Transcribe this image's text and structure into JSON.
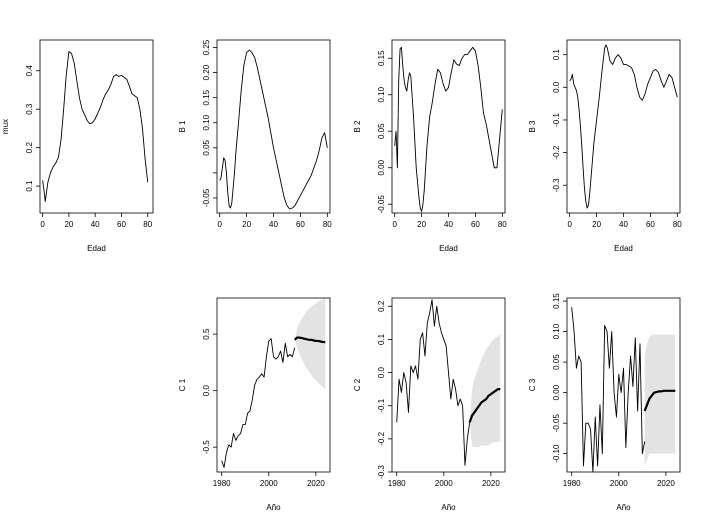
{
  "chart_data": [
    {
      "type": "line",
      "ylabel": "mux",
      "xlabel": "Edad",
      "xlim": [
        -2,
        84
      ],
      "ylim": [
        0.03,
        0.48
      ],
      "xticks": [
        0,
        20,
        40,
        60,
        80
      ],
      "yticks": [
        0.1,
        0.2,
        0.3,
        0.4
      ],
      "x": [
        0,
        1,
        2,
        4,
        6,
        8,
        10,
        12,
        14,
        16,
        18,
        20,
        22,
        24,
        26,
        28,
        30,
        32,
        34,
        36,
        38,
        40,
        42,
        44,
        46,
        48,
        50,
        52,
        54,
        56,
        58,
        60,
        62,
        64,
        66,
        68,
        70,
        72,
        74,
        76,
        78,
        80
      ],
      "series": [
        {
          "values": [
            0.115,
            0.09,
            0.06,
            0.11,
            0.135,
            0.15,
            0.16,
            0.175,
            0.22,
            0.3,
            0.39,
            0.45,
            0.445,
            0.42,
            0.375,
            0.33,
            0.3,
            0.285,
            0.27,
            0.262,
            0.265,
            0.275,
            0.29,
            0.305,
            0.325,
            0.34,
            0.35,
            0.365,
            0.385,
            0.39,
            0.385,
            0.388,
            0.383,
            0.378,
            0.36,
            0.34,
            0.335,
            0.33,
            0.3,
            0.25,
            0.17,
            0.11
          ]
        }
      ]
    },
    {
      "type": "line",
      "ylabel": "B 1",
      "xlabel": "",
      "xlim": [
        -2,
        82
      ],
      "ylim": [
        -0.08,
        0.265
      ],
      "xticks": [
        0,
        20,
        40,
        60,
        80
      ],
      "yticks": [
        -0.05,
        0.0,
        0.05,
        0.1,
        0.15,
        0.2,
        0.25
      ],
      "ytick_labels": [
        "-0.05",
        "",
        "0.05",
        "0.10",
        "0.15",
        "0.20",
        "0.25"
      ],
      "x": [
        0,
        1,
        2,
        3,
        4,
        5,
        6,
        7,
        8,
        9,
        10,
        11,
        12,
        14,
        16,
        18,
        20,
        22,
        24,
        26,
        28,
        30,
        32,
        34,
        36,
        38,
        40,
        42,
        44,
        46,
        48,
        50,
        52,
        54,
        56,
        58,
        60,
        62,
        64,
        66,
        68,
        70,
        72,
        74,
        76,
        78,
        80
      ],
      "series": [
        {
          "values": [
            -0.015,
            -0.01,
            0.01,
            0.03,
            0.025,
            0.0,
            -0.04,
            -0.065,
            -0.07,
            -0.06,
            -0.03,
            0.0,
            0.04,
            0.1,
            0.165,
            0.215,
            0.24,
            0.245,
            0.24,
            0.23,
            0.21,
            0.185,
            0.16,
            0.135,
            0.11,
            0.08,
            0.05,
            0.025,
            0.0,
            -0.025,
            -0.05,
            -0.065,
            -0.072,
            -0.07,
            -0.065,
            -0.055,
            -0.045,
            -0.035,
            -0.025,
            -0.015,
            -0.005,
            0.01,
            0.025,
            0.045,
            0.07,
            0.08,
            0.05
          ]
        }
      ]
    },
    {
      "type": "line",
      "ylabel": "B 2",
      "xlabel": "Edad",
      "xlim": [
        -2,
        82
      ],
      "ylim": [
        -0.062,
        0.175
      ],
      "xticks": [
        0,
        20,
        40,
        60,
        80
      ],
      "yticks": [
        -0.05,
        0.0,
        0.05,
        0.1,
        0.15
      ],
      "ytick_labels": [
        "-0.05",
        "0.00",
        "0.05",
        "0.10",
        "0.15"
      ],
      "x": [
        0,
        1,
        2,
        3,
        4,
        5,
        6,
        7,
        8,
        9,
        10,
        11,
        12,
        14,
        16,
        18,
        19,
        20,
        21,
        22,
        24,
        26,
        28,
        30,
        32,
        34,
        36,
        38,
        40,
        42,
        44,
        46,
        48,
        50,
        52,
        54,
        56,
        58,
        60,
        61,
        62,
        64,
        66,
        68,
        70,
        72,
        74,
        76,
        78,
        80
      ],
      "series": [
        {
          "values": [
            0.03,
            0.05,
            0.0,
            0.12,
            0.163,
            0.165,
            0.14,
            0.12,
            0.11,
            0.105,
            0.12,
            0.13,
            0.125,
            0.07,
            0.0,
            -0.04,
            -0.055,
            -0.06,
            -0.05,
            -0.03,
            0.03,
            0.07,
            0.09,
            0.115,
            0.135,
            0.13,
            0.115,
            0.105,
            0.11,
            0.13,
            0.148,
            0.142,
            0.14,
            0.15,
            0.155,
            0.155,
            0.16,
            0.165,
            0.16,
            0.15,
            0.14,
            0.11,
            0.075,
            0.06,
            0.04,
            0.02,
            0.0,
            0.0,
            0.04,
            0.08
          ]
        }
      ]
    },
    {
      "type": "line",
      "ylabel": "B 3",
      "xlabel": "Edad",
      "xlim": [
        -2,
        82
      ],
      "ylim": [
        -0.385,
        0.145
      ],
      "xticks": [
        0,
        20,
        40,
        60,
        80
      ],
      "yticks": [
        -0.3,
        -0.2,
        -0.1,
        0.0,
        0.1
      ],
      "ytick_labels": [
        "-0.3",
        "-0.2",
        "-0.1",
        "0.0",
        "0.1"
      ],
      "x": [
        0,
        1,
        2,
        3,
        4,
        5,
        6,
        7,
        8,
        9,
        10,
        11,
        12,
        13,
        14,
        15,
        16,
        17,
        18,
        20,
        22,
        24,
        26,
        27,
        28,
        30,
        32,
        34,
        36,
        38,
        40,
        42,
        44,
        46,
        48,
        50,
        52,
        54,
        56,
        58,
        60,
        62,
        64,
        66,
        68,
        70,
        72,
        74,
        76,
        78,
        80
      ],
      "series": [
        {
          "values": [
            0.02,
            0.025,
            0.04,
            0.01,
            0.0,
            -0.01,
            -0.03,
            -0.07,
            -0.12,
            -0.18,
            -0.25,
            -0.31,
            -0.35,
            -0.37,
            -0.36,
            -0.32,
            -0.27,
            -0.22,
            -0.17,
            -0.1,
            -0.03,
            0.05,
            0.12,
            0.13,
            0.12,
            0.08,
            0.07,
            0.09,
            0.1,
            0.09,
            0.07,
            0.07,
            0.065,
            0.06,
            0.04,
            0.0,
            -0.03,
            -0.04,
            -0.02,
            0.01,
            0.03,
            0.05,
            0.055,
            0.045,
            0.02,
            0.0,
            0.02,
            0.04,
            0.03,
            0.0,
            -0.03
          ]
        }
      ]
    },
    {
      "type": "line",
      "ylabel": "C 1",
      "xlabel": "Año",
      "xlim": [
        1978,
        2026
      ],
      "ylim": [
        -0.72,
        0.82
      ],
      "xticks": [
        1980,
        2000,
        2020
      ],
      "yticks": [
        -0.5,
        0.0,
        0.5
      ],
      "ytick_labels": [
        "-0.5",
        "0.0",
        "0.5"
      ],
      "x": [
        1980,
        1981,
        1982,
        1983,
        1984,
        1985,
        1986,
        1987,
        1988,
        1989,
        1990,
        1991,
        1992,
        1993,
        1994,
        1995,
        1996,
        1997,
        1998,
        1999,
        2000,
        2001,
        2002,
        2003,
        2004,
        2005,
        2006,
        2007,
        2008,
        2009,
        2010,
        2011
      ],
      "series": [
        {
          "values": [
            -0.62,
            -0.68,
            -0.55,
            -0.48,
            -0.5,
            -0.38,
            -0.44,
            -0.4,
            -0.38,
            -0.3,
            -0.3,
            -0.2,
            -0.18,
            -0.08,
            0.05,
            0.1,
            0.12,
            0.15,
            0.12,
            0.3,
            0.44,
            0.46,
            0.3,
            0.28,
            0.3,
            0.35,
            0.25,
            0.42,
            0.3,
            0.32,
            0.3,
            0.38
          ]
        }
      ],
      "forecast": {
        "x": [
          2011,
          2012,
          2013,
          2014,
          2015,
          2016,
          2017,
          2018,
          2019,
          2020,
          2021,
          2022,
          2023,
          2024
        ],
        "mean": [
          0.45,
          0.47,
          0.47,
          0.465,
          0.46,
          0.455,
          0.45,
          0.45,
          0.445,
          0.44,
          0.44,
          0.435,
          0.43,
          0.43
        ],
        "lower": [
          0.45,
          0.38,
          0.33,
          0.28,
          0.24,
          0.2,
          0.17,
          0.14,
          0.11,
          0.09,
          0.07,
          0.05,
          0.03,
          0.01
        ],
        "upper": [
          0.45,
          0.55,
          0.6,
          0.64,
          0.67,
          0.7,
          0.72,
          0.74,
          0.76,
          0.77,
          0.79,
          0.8,
          0.81,
          0.82
        ]
      }
    },
    {
      "type": "line",
      "ylabel": "C 2",
      "xlabel": "Año",
      "xlim": [
        1978,
        2026
      ],
      "ylim": [
        -0.3,
        0.225
      ],
      "xticks": [
        1980,
        2000,
        2020
      ],
      "yticks": [
        -0.3,
        -0.2,
        -0.1,
        0.0,
        0.1,
        0.2
      ],
      "ytick_labels": [
        "-0.3",
        "-0.2",
        "-0.1",
        "0.0",
        "0.1",
        "0.2"
      ],
      "x": [
        1980,
        1981,
        1982,
        1983,
        1984,
        1985,
        1986,
        1987,
        1988,
        1989,
        1990,
        1991,
        1992,
        1993,
        1994,
        1995,
        1996,
        1997,
        1998,
        1999,
        2000,
        2001,
        2002,
        2003,
        2004,
        2005,
        2006,
        2007,
        2008,
        2009,
        2010,
        2011
      ],
      "series": [
        {
          "values": [
            -0.15,
            -0.02,
            -0.06,
            0.0,
            -0.03,
            -0.12,
            0.02,
            0.0,
            0.02,
            -0.02,
            0.1,
            0.12,
            0.05,
            0.15,
            0.18,
            0.22,
            0.14,
            0.2,
            0.15,
            0.12,
            0.1,
            0.08,
            0.0,
            -0.08,
            -0.02,
            -0.05,
            -0.1,
            -0.08,
            -0.1,
            -0.28,
            -0.2,
            -0.15
          ]
        }
      ],
      "forecast": {
        "x": [
          2011,
          2012,
          2013,
          2014,
          2015,
          2016,
          2017,
          2018,
          2019,
          2020,
          2021,
          2022,
          2023,
          2024
        ],
        "mean": [
          -0.15,
          -0.13,
          -0.12,
          -0.11,
          -0.1,
          -0.09,
          -0.085,
          -0.08,
          -0.07,
          -0.065,
          -0.06,
          -0.055,
          -0.05,
          -0.05
        ],
        "lower": [
          -0.15,
          -0.22,
          -0.225,
          -0.225,
          -0.225,
          -0.22,
          -0.22,
          -0.22,
          -0.22,
          -0.215,
          -0.21,
          -0.21,
          -0.21,
          -0.205
        ],
        "upper": [
          -0.15,
          -0.05,
          -0.02,
          0.0,
          0.02,
          0.04,
          0.055,
          0.07,
          0.08,
          0.09,
          0.1,
          0.105,
          0.11,
          0.115
        ]
      }
    },
    {
      "type": "line",
      "ylabel": "C 3",
      "xlabel": "Año",
      "xlim": [
        1978,
        2026
      ],
      "ylim": [
        -0.13,
        0.155
      ],
      "xticks": [
        1980,
        2000,
        2020
      ],
      "yticks": [
        -0.1,
        -0.05,
        0.0,
        0.05,
        0.1,
        0.15
      ],
      "ytick_labels": [
        "-0.10",
        "-0.05",
        "0.00",
        "0.05",
        "0.10",
        "0.15"
      ],
      "x": [
        1980,
        1981,
        1982,
        1983,
        1984,
        1985,
        1986,
        1987,
        1988,
        1989,
        1990,
        1991,
        1992,
        1993,
        1994,
        1995,
        1996,
        1997,
        1998,
        1999,
        2000,
        2001,
        2002,
        2003,
        2004,
        2005,
        2006,
        2007,
        2008,
        2009,
        2010,
        2011
      ],
      "series": [
        {
          "values": [
            0.14,
            0.1,
            0.04,
            0.06,
            0.05,
            -0.12,
            -0.05,
            -0.05,
            -0.06,
            -0.13,
            -0.04,
            -0.12,
            -0.02,
            -0.1,
            0.11,
            0.1,
            0.04,
            0.1,
            0.0,
            -0.04,
            0.03,
            0.0,
            0.04,
            -0.09,
            0.0,
            0.06,
            0.01,
            0.09,
            -0.03,
            0.08,
            -0.1,
            -0.08
          ]
        }
      ],
      "forecast": {
        "x": [
          2011,
          2012,
          2013,
          2014,
          2015,
          2016,
          2017,
          2018,
          2019,
          2020,
          2021,
          2022,
          2023,
          2024
        ],
        "mean": [
          -0.03,
          -0.02,
          -0.01,
          -0.005,
          0.0,
          0.001,
          0.002,
          0.002,
          0.003,
          0.003,
          0.003,
          0.003,
          0.003,
          0.003
        ],
        "lower": [
          -0.12,
          -0.11,
          -0.1,
          -0.1,
          -0.1,
          -0.1,
          -0.1,
          -0.1,
          -0.1,
          -0.1,
          -0.1,
          -0.1,
          -0.1,
          -0.1
        ],
        "upper": [
          0.06,
          0.08,
          0.09,
          0.095,
          0.095,
          0.095,
          0.095,
          0.095,
          0.095,
          0.095,
          0.095,
          0.095,
          0.095,
          0.095
        ]
      }
    }
  ]
}
